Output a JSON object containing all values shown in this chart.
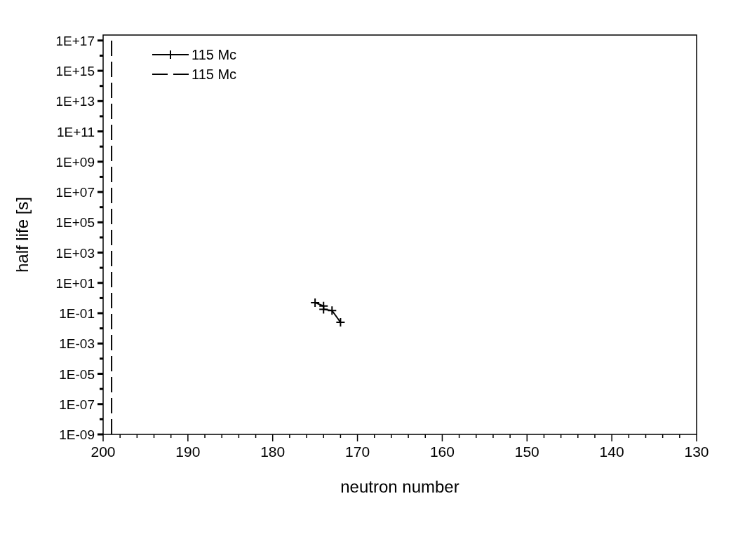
{
  "chart_data": {
    "type": "line",
    "xlabel": "neutron number",
    "ylabel": "half life [s]",
    "log": "y",
    "xlim": [
      200,
      130
    ],
    "ylim": [
      1e-09,
      2.3e+17
    ],
    "xticks": [
      200,
      {
        "value": 198,
        "label": null
      },
      {
        "value": 196,
        "label": null
      },
      {
        "value": 194,
        "label": null
      },
      {
        "value": 192,
        "label": null
      },
      190,
      {
        "value": 188,
        "label": null
      },
      {
        "value": 186,
        "label": null
      },
      {
        "value": 184,
        "label": null
      },
      {
        "value": 182,
        "label": null
      },
      180,
      {
        "value": 178,
        "label": null
      },
      {
        "value": 176,
        "label": null
      },
      {
        "value": 174,
        "label": null
      },
      {
        "value": 172,
        "label": null
      },
      170,
      {
        "value": 168,
        "label": null
      },
      {
        "value": 166,
        "label": null
      },
      {
        "value": 164,
        "label": null
      },
      {
        "value": 162,
        "label": null
      },
      160,
      {
        "value": 158,
        "label": null
      },
      {
        "value": 156,
        "label": null
      },
      {
        "value": 154,
        "label": null
      },
      {
        "value": 152,
        "label": null
      },
      150,
      {
        "value": 148,
        "label": null
      },
      {
        "value": 146,
        "label": null
      },
      {
        "value": 144,
        "label": null
      },
      {
        "value": 142,
        "label": null
      },
      140,
      {
        "value": 138,
        "label": null
      },
      {
        "value": 136,
        "label": null
      },
      {
        "value": 134,
        "label": null
      },
      {
        "value": 132,
        "label": null
      },
      130
    ],
    "yticks": [
      {
        "value": 1e-09,
        "label": "1E-09"
      },
      {
        "value": 1e-08,
        "label": null
      },
      {
        "value": 1e-07,
        "label": "1E-07"
      },
      {
        "value": 1e-06,
        "label": null
      },
      {
        "value": 1e-05,
        "label": "1E-05"
      },
      {
        "value": 0.0001,
        "label": null
      },
      {
        "value": 0.001,
        "label": "1E-03"
      },
      {
        "value": 0.01,
        "label": null
      },
      {
        "value": 0.1,
        "label": "1E-01"
      },
      {
        "value": 1,
        "label": null
      },
      {
        "value": 10,
        "label": "1E+01"
      },
      {
        "value": 100,
        "label": null
      },
      {
        "value": 1000.0,
        "label": "1E+03"
      },
      {
        "value": 10000.0,
        "label": null
      },
      {
        "value": 100000.0,
        "label": "1E+05"
      },
      {
        "value": 1000000.0,
        "label": null
      },
      {
        "value": 10000000.0,
        "label": "1E+07"
      },
      {
        "value": 100000000.0,
        "label": null
      },
      {
        "value": 1000000000.0,
        "label": "1E+09"
      },
      {
        "value": 10000000000.0,
        "label": null
      },
      {
        "value": 100000000000.0,
        "label": "1E+11"
      },
      {
        "value": 1000000000000.0,
        "label": null
      },
      {
        "value": 10000000000000.0,
        "label": "1E+13"
      },
      {
        "value": 100000000000000.0,
        "label": null
      },
      {
        "value": 1000000000000000.0,
        "label": "1E+15"
      },
      {
        "value": 1e+16,
        "label": null
      },
      {
        "value": 1e+17,
        "label": "1E+17"
      }
    ],
    "grid": false,
    "legend": "top left",
    "marker": "cross",
    "series": [
      {
        "name": "115 Mc",
        "color": "#000000",
        "x": [
          175,
          174,
          174,
          173,
          172
        ],
        "values": [
          0.5,
          0.3,
          0.18,
          0.15,
          0.025
        ]
      },
      {
        "name": "115 Mc",
        "color": "#000000",
        "x": [
          199,
          199
        ],
        "values": [
          1e-09,
          1e+17
        ],
        "line_style": "dashed",
        "marker": "none"
      }
    ]
  }
}
